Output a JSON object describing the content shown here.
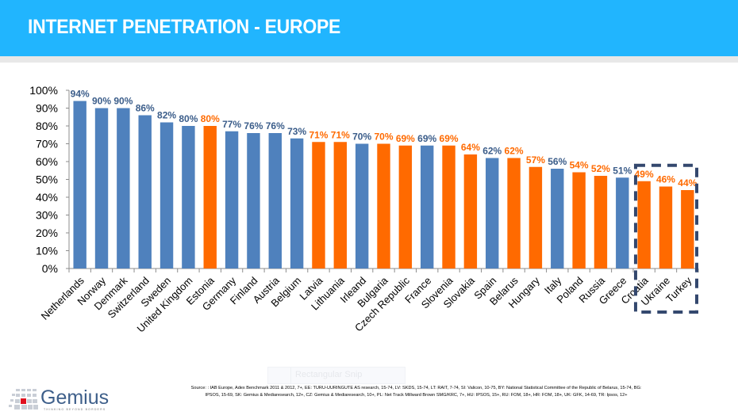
{
  "header": {
    "title": "INTERNET PENETRATION - EUROPE"
  },
  "colors": {
    "header_bg": "#21b5fe",
    "blue_bar": "#4f81bd",
    "orange_bar": "#ff6a00",
    "blue_label": "#3b5d8a",
    "orange_label": "#ff6a00",
    "highlight_box": "#34486e"
  },
  "chart_data": {
    "type": "bar",
    "title": "INTERNET PENETRATION - EUROPE",
    "xlabel": "",
    "ylabel": "",
    "ylim": [
      0,
      100
    ],
    "y_ticks": [
      "0%",
      "10%",
      "20%",
      "30%",
      "40%",
      "50%",
      "60%",
      "70%",
      "80%",
      "90%",
      "100%"
    ],
    "grid": false,
    "legend": "none",
    "categories": [
      "Netherlands",
      "Norway",
      "Denmark",
      "Switzerland",
      "Sweden",
      "United Kingdom",
      "Estonia",
      "Germany",
      "Finland",
      "Austria",
      "Belgium",
      "Latvia",
      "Lithuania",
      "Irleand",
      "Bulgaria",
      "Czech Republic",
      "France",
      "Slovenia",
      "Slovakia",
      "Spain",
      "Belarus",
      "Hungary",
      "Italy",
      "Poland",
      "Russia",
      "Greece",
      "Croatia",
      "Ukraine",
      "Turkey"
    ],
    "values": [
      94,
      90,
      90,
      86,
      82,
      80,
      80,
      77,
      76,
      76,
      73,
      71,
      71,
      70,
      70,
      69,
      69,
      69,
      64,
      62,
      62,
      57,
      56,
      54,
      52,
      51,
      49,
      46,
      44
    ],
    "labels": [
      "94%",
      "90%",
      "90%",
      "86%",
      "82%",
      "80%",
      "80%",
      "77%",
      "76%",
      "76%",
      "73%",
      "71%",
      "71%",
      "70%",
      "70%",
      "69%",
      "69%",
      "69%",
      "64%",
      "62%",
      "62%",
      "57%",
      "56%",
      "54%",
      "52%",
      "51%",
      "49%",
      "46%",
      "44%"
    ],
    "bar_groups": [
      "blue",
      "blue",
      "blue",
      "blue",
      "blue",
      "blue",
      "orange",
      "blue",
      "blue",
      "blue",
      "blue",
      "orange",
      "orange",
      "blue",
      "orange",
      "orange",
      "blue",
      "orange",
      "orange",
      "blue",
      "orange",
      "orange",
      "blue",
      "orange",
      "orange",
      "blue",
      "orange",
      "orange",
      "orange"
    ],
    "highlighted_categories": [
      "Croatia",
      "Ukraine",
      "Turkey"
    ]
  },
  "source": {
    "line1": "Source: : IAB Europe, Adex Benchmark 2011 & 2012, 7+, EE: TURU-UURINGUTE AS research, 15-74, LV: SKDS, 15-74, LT: RAIT, 7-74, SI: Valicon, 10-75, BY: National Statistical Committee of the Republic of Belarus, 15-74, BG:",
    "line2": "IPSOS, 15-69, SK: Gemius & Mediaresearch, 12+, CZ: Gemius & Mediaresearch, 10+, PL: Net Track Millward Brown SMG/KRC, 7+, HU: IPSOS, 15+, RU: FOM, 18+, HR: FOM, 18+, UK: GFK, 14-69, TR: Ipsos, 12+"
  },
  "overlay": {
    "snip_label": "Rectangular Snip"
  },
  "logo": {
    "name": "Gemius",
    "tagline": "THINKING BEYOND BORDERS"
  }
}
